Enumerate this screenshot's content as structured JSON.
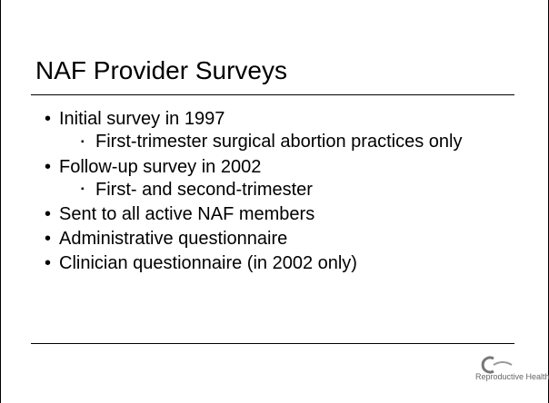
{
  "title": "NAF Provider Surveys",
  "bullets": [
    {
      "text": "Initial survey in 1997",
      "level": 1
    },
    {
      "text": "First-trimester surgical abortion practices only",
      "level": 2
    },
    {
      "text": "Follow-up survey in 2002",
      "level": 1
    },
    {
      "text": "First- and second-trimester",
      "level": 2
    },
    {
      "text": "Sent to all active NAF members",
      "level": 1
    },
    {
      "text": "Administrative questionnaire",
      "level": 1
    },
    {
      "text": "Clinician questionnaire (in 2002 only)",
      "level": 1
    }
  ],
  "logo": {
    "text": "Reproductive Health"
  }
}
